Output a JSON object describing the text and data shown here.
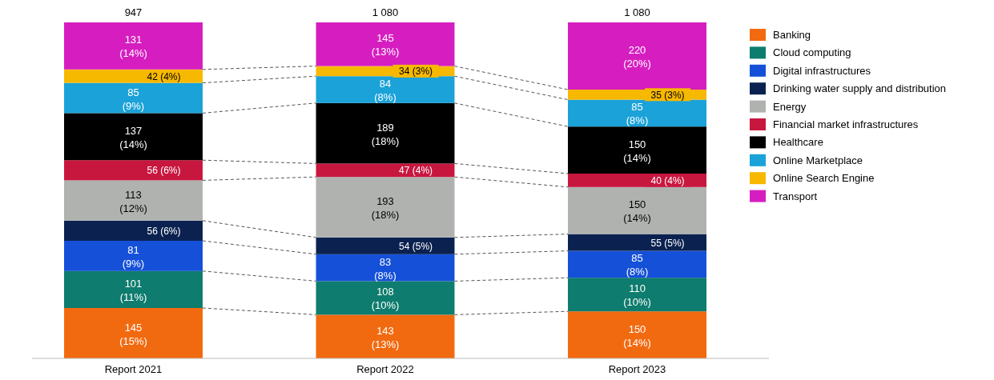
{
  "chart_data": {
    "type": "bar",
    "stacked": true,
    "categories": [
      "Report 2021",
      "Report 2022",
      "Report 2023"
    ],
    "ylim": [
      0,
      100
    ],
    "tick_labels": "x",
    "legend": "right",
    "annotations": [
      "947",
      "1 080",
      "1 080"
    ],
    "series": [
      {
        "name": "Banking",
        "color": "#f26a10",
        "values": [
          15,
          13,
          14
        ],
        "value_labels": [
          "145 (15%)",
          "143 (13%)",
          "150 (14%)"
        ]
      },
      {
        "name": "Cloud computing",
        "color": "#0e7c6e",
        "values": [
          11,
          10,
          10
        ],
        "value_labels": [
          "101 (11%)",
          "108 (10%)",
          "110 (10%)"
        ]
      },
      {
        "name": "Digital infrastructures",
        "color": "#1550d8",
        "values": [
          9,
          8,
          8
        ],
        "value_labels": [
          "81 (9%)",
          "83 (8%)",
          "85 (8%)"
        ]
      },
      {
        "name": "Drinking water supply and distribution",
        "color": "#0b2250",
        "values": [
          6,
          5,
          5
        ],
        "value_labels": [
          "56 (6%)",
          "54 (5%)",
          "55 (5%)"
        ]
      },
      {
        "name": "Energy",
        "color": "#b0b2b0",
        "values": [
          12,
          18,
          14
        ],
        "value_labels": [
          "113 (12%)",
          "193 (18%)",
          "150 (14%)"
        ]
      },
      {
        "name": "Financial market infrastructures",
        "color": "#c8173f",
        "values": [
          6,
          4,
          4
        ],
        "value_labels": [
          "56 (6%)",
          "47 (4%)",
          "40 (4%)"
        ]
      },
      {
        "name": "Healthcare",
        "color": "#000000",
        "values": [
          14,
          18,
          14
        ],
        "value_labels": [
          "137 (14%)",
          "189 (18%)",
          "150 (14%)"
        ]
      },
      {
        "name": "Online Marketplace",
        "color": "#1ba2d8",
        "values": [
          9,
          8,
          8
        ],
        "value_labels": [
          "85 (9%)",
          "84 (8%)",
          "85 (8%)"
        ]
      },
      {
        "name": "Online Search Engine",
        "color": "#f7b800",
        "values": [
          4,
          3,
          3
        ],
        "value_labels": [
          "42 (4%)",
          "34 (3%)",
          "35 (3%)"
        ]
      },
      {
        "name": "Transport",
        "color": "#d61ec0",
        "values": [
          14,
          13,
          20
        ],
        "value_labels": [
          "131 (14%)",
          "145 (13%)",
          "220 (20%)"
        ]
      }
    ]
  }
}
